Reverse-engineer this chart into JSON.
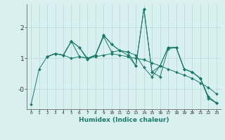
{
  "xlabel": "Humidex (Indice chaleur)",
  "ylabel": "",
  "background_color": "#d8f0f0",
  "grid_color": "#b8d8d8",
  "line_color": "#1a7a6a",
  "xlim": [
    -0.5,
    23.5
  ],
  "ylim": [
    -0.65,
    2.75
  ],
  "yticks": [
    0.0,
    1.0,
    2.0
  ],
  "ytick_labels": [
    "-0",
    "1",
    "2"
  ],
  "series": [
    {
      "x": [
        0,
        1,
        2,
        3,
        4,
        5,
        6,
        7,
        8,
        9,
        10,
        11,
        12,
        13,
        14,
        15,
        16,
        17,
        18,
        19,
        20,
        21,
        22,
        23
      ],
      "y": [
        -0.5,
        0.65,
        1.05,
        1.15,
        1.1,
        1.55,
        1.35,
        0.95,
        1.1,
        1.7,
        1.2,
        1.25,
        1.1,
        0.75,
        2.6,
        0.55,
        0.4,
        1.3,
        1.35,
        0.65,
        0.55,
        0.35,
        -0.25,
        -0.45
      ]
    },
    {
      "x": [
        2,
        3,
        4,
        5,
        6,
        7,
        8,
        9,
        10,
        11,
        12,
        13,
        14,
        15,
        16,
        17,
        18,
        19,
        20,
        21,
        22,
        23
      ],
      "y": [
        1.05,
        1.15,
        1.1,
        1.55,
        1.05,
        1.0,
        1.1,
        1.75,
        1.45,
        1.25,
        1.2,
        0.75,
        2.6,
        0.55,
        0.75,
        1.35,
        1.35,
        0.65,
        0.55,
        0.35,
        -0.25,
        -0.45
      ]
    },
    {
      "x": [
        2,
        3,
        4,
        5,
        6,
        7,
        8,
        9,
        10,
        11,
        12,
        13,
        14,
        15,
        16,
        17,
        18,
        19,
        20,
        21,
        22,
        23
      ],
      "y": [
        1.05,
        1.15,
        1.1,
        1.0,
        1.05,
        1.0,
        1.05,
        1.1,
        1.15,
        1.1,
        1.05,
        1.0,
        0.95,
        0.85,
        0.75,
        0.65,
        0.55,
        0.45,
        0.35,
        0.2,
        0.05,
        -0.15
      ]
    },
    {
      "x": [
        2,
        3,
        4,
        5,
        6,
        7,
        8,
        9,
        10,
        11,
        12,
        13,
        14,
        15,
        16,
        17,
        18,
        19,
        20,
        21,
        22,
        23
      ],
      "y": [
        1.05,
        1.15,
        1.1,
        1.55,
        1.35,
        1.0,
        1.1,
        1.75,
        1.45,
        1.25,
        1.2,
        1.1,
        0.7,
        0.4,
        0.75,
        1.35,
        1.35,
        0.65,
        0.55,
        0.35,
        -0.3,
        -0.45
      ]
    }
  ]
}
